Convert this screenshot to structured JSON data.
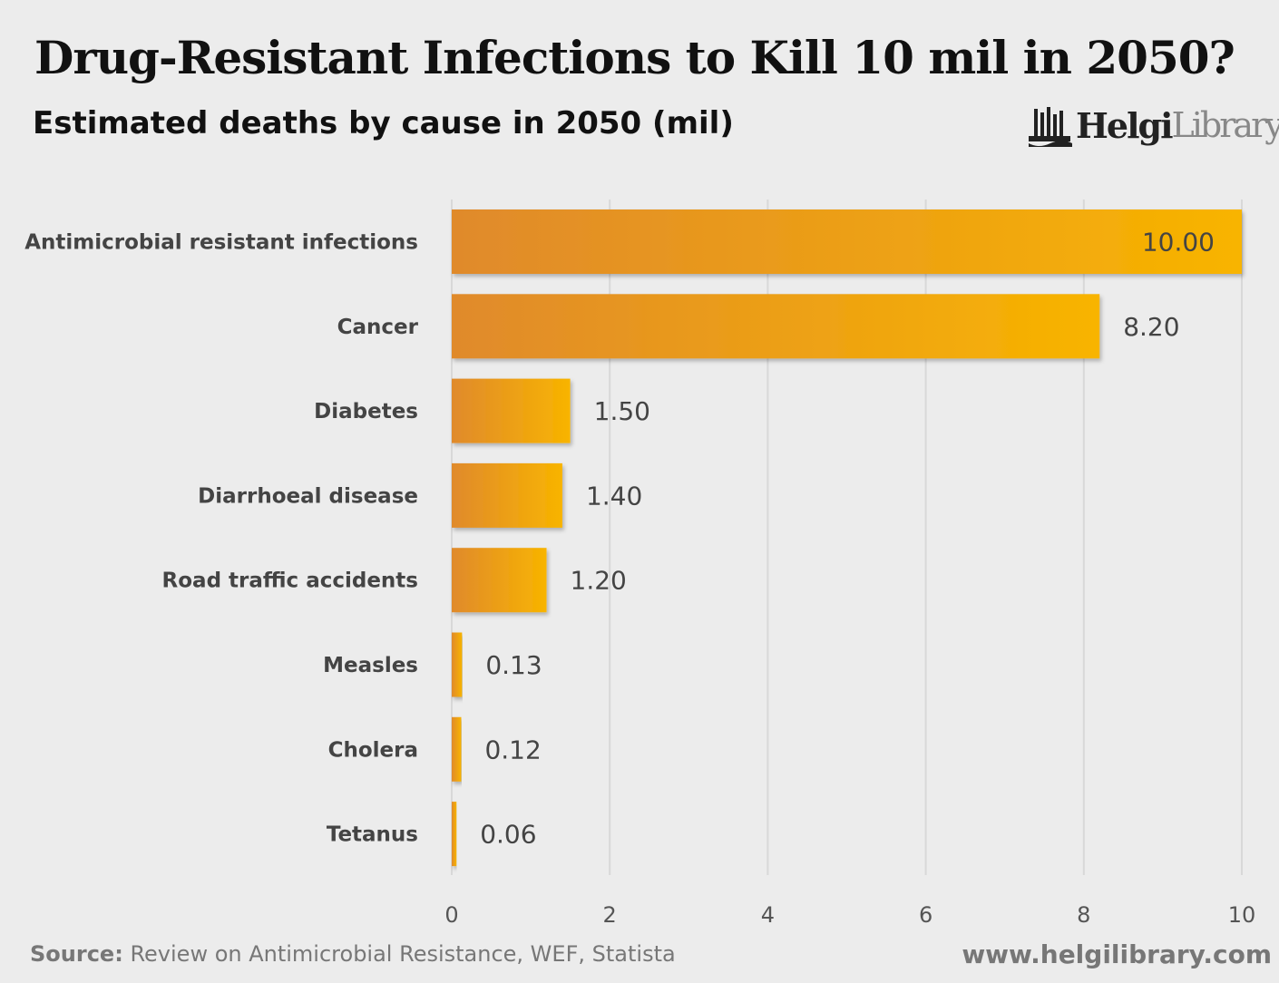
{
  "title": "Drug-Resistant Infections to Kill 10 mil in 2050?",
  "logo": {
    "part1": "Helgi",
    "part2": "Library."
  },
  "source_label": "Source:",
  "source_text": "Review on Antimicrobial Resistance, WEF, Statista",
  "url": "www.helgilibrary.com",
  "colors": {
    "bar_start": "#e08a2c",
    "bar_end": "#f8b400",
    "background": "#ececec",
    "grid": "#d8d8d8"
  },
  "chart_data": {
    "type": "bar",
    "orientation": "horizontal",
    "title": "Estimated deaths by cause in 2050 (mil)",
    "categories": [
      "Antimicrobial resistant infections",
      "Cancer",
      "Diabetes",
      "Diarrhoeal disease",
      "Road traffic accidents",
      "Measles",
      "Cholera",
      "Tetanus"
    ],
    "values": [
      10.0,
      8.2,
      1.5,
      1.4,
      1.2,
      0.13,
      0.12,
      0.06
    ],
    "value_labels": [
      "10.00",
      "8.20",
      "1.50",
      "1.40",
      "1.20",
      "0.13",
      "0.12",
      "0.06"
    ],
    "xlim": [
      0,
      10
    ],
    "xticks": [
      "0",
      "2",
      "4",
      "6",
      "8",
      "10"
    ],
    "grid": true,
    "xlabel": "",
    "ylabel": ""
  }
}
